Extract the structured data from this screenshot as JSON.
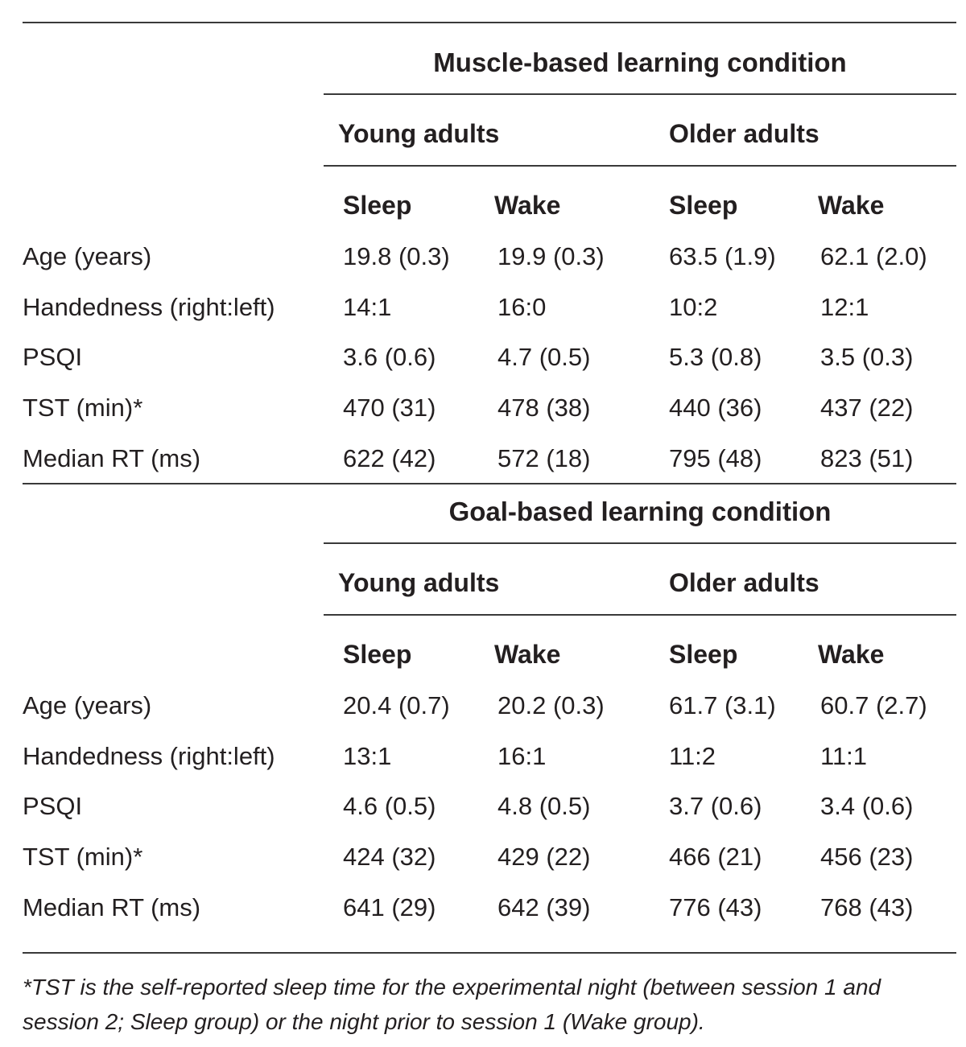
{
  "panels": [
    {
      "condition": "Muscle-based learning condition",
      "groups": [
        "Young adults",
        "Older adults"
      ],
      "columns": [
        "Sleep",
        "Wake",
        "Sleep",
        "Wake"
      ],
      "rows": [
        {
          "label": "Age (years)",
          "cells": [
            "19.8 (0.3)",
            "19.9 (0.3)",
            "63.5 (1.9)",
            "62.1 (2.0)"
          ]
        },
        {
          "label": "Handedness (right:left)",
          "cells": [
            "14:1",
            "16:0",
            "10:2",
            "12:1"
          ]
        },
        {
          "label": "PSQI",
          "cells": [
            "3.6 (0.6)",
            "4.7 (0.5)",
            "5.3 (0.8)",
            "3.5 (0.3)"
          ]
        },
        {
          "label": "TST (min)*",
          "cells": [
            "470 (31)",
            "478 (38)",
            "440 (36)",
            "437 (22)"
          ]
        },
        {
          "label": "Median RT (ms)",
          "cells": [
            "622 (42)",
            "572 (18)",
            "795 (48)",
            "823 (51)"
          ]
        }
      ]
    },
    {
      "condition": "Goal-based learning condition",
      "groups": [
        "Young adults",
        "Older adults"
      ],
      "columns": [
        "Sleep",
        "Wake",
        "Sleep",
        "Wake"
      ],
      "rows": [
        {
          "label": "Age (years)",
          "cells": [
            "20.4 (0.7)",
            "20.2 (0.3)",
            "61.7 (3.1)",
            "60.7 (2.7)"
          ]
        },
        {
          "label": "Handedness (right:left)",
          "cells": [
            "13:1",
            "16:1",
            "11:2",
            "11:1"
          ]
        },
        {
          "label": "PSQI",
          "cells": [
            "4.6 (0.5)",
            "4.8 (0.5)",
            "3.7 (0.6)",
            "3.4 (0.6)"
          ]
        },
        {
          "label": "TST (min)*",
          "cells": [
            "424 (32)",
            "429 (22)",
            "466 (21)",
            "456 (23)"
          ]
        },
        {
          "label": "Median RT (ms)",
          "cells": [
            "641 (29)",
            "642 (39)",
            "776 (43)",
            "768 (43)"
          ]
        }
      ]
    }
  ],
  "footnote": "*TST is the self-reported sleep time for the experimental night (between session 1 and session 2; Sleep group) or the night prior to session 1 (Wake group)."
}
